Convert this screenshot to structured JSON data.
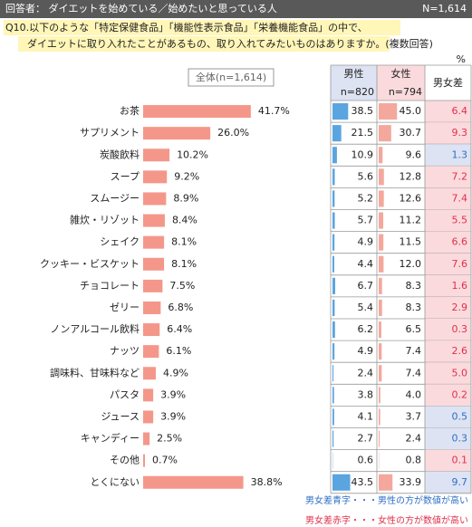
{
  "header": {
    "respondents": "回答者： ダイエットを始めている／始めたいと思っている人",
    "n": "N=1,614"
  },
  "question": [
    "Q10.以下のような「特定保健食品」「機能性表示食品」「栄養機能食品」の中で、",
    "ダイエットに取り入れたことがあるもの、取り入れてみたいものはありますか。(複数回答)"
  ],
  "chart_data": {
    "type": "bar",
    "unit": "%",
    "categories": [
      "お茶",
      "サプリメント",
      "炭酸飲料",
      "スープ",
      "スムージー",
      "雑炊・リゾット",
      "シェイク",
      "クッキー・ビスケット",
      "チョコレート",
      "ゼリー",
      "ノンアルコール飲料",
      "ナッツ",
      "調味料、甘味料など",
      "パスタ",
      "ジュース",
      "キャンディー",
      "その他",
      "とくにない"
    ],
    "series": [
      {
        "name": "全体(n=1,614)",
        "color": "#f4978a",
        "values": [
          41.7,
          26.0,
          10.2,
          9.2,
          8.9,
          8.4,
          8.1,
          8.1,
          7.5,
          6.8,
          6.4,
          6.1,
          4.9,
          3.9,
          3.9,
          2.5,
          0.7,
          38.8
        ],
        "value_labels": [
          "41.7%",
          "26.0%",
          "10.2%",
          "9.2%",
          "8.9%",
          "8.4%",
          "8.1%",
          "8.1%",
          "7.5%",
          "6.8%",
          "6.4%",
          "6.1%",
          "4.9%",
          "3.9%",
          "3.9%",
          "2.5%",
          "0.7%",
          "38.8%"
        ]
      },
      {
        "name": "男性",
        "sample": "n=820",
        "color": "#5aa5e0",
        "values": [
          38.5,
          21.5,
          10.9,
          5.6,
          5.2,
          5.7,
          4.9,
          4.4,
          6.7,
          5.4,
          6.2,
          4.9,
          2.4,
          3.8,
          4.1,
          2.7,
          0.6,
          43.5
        ],
        "value_labels": [
          "38.5",
          "21.5",
          "10.9",
          "5.6",
          "5.2",
          "5.7",
          "4.9",
          "4.4",
          "6.7",
          "5.4",
          "6.2",
          "4.9",
          "2.4",
          "3.8",
          "4.1",
          "2.7",
          "0.6",
          "43.5"
        ]
      },
      {
        "name": "女性",
        "sample": "n=794",
        "color": "#f4a89c",
        "values": [
          45.0,
          30.7,
          9.6,
          12.8,
          12.6,
          11.2,
          11.5,
          12.0,
          8.3,
          8.3,
          6.5,
          7.4,
          7.4,
          4.0,
          3.7,
          2.4,
          0.8,
          33.9
        ],
        "value_labels": [
          "45.0",
          "30.7",
          "9.6",
          "12.8",
          "12.6",
          "11.2",
          "11.5",
          "12.0",
          "8.3",
          "8.3",
          "6.5",
          "7.4",
          "7.4",
          "4.0",
          "3.7",
          "2.4",
          "0.8",
          "33.9"
        ]
      },
      {
        "name": "男女差",
        "values": [
          6.4,
          9.3,
          1.3,
          7.2,
          7.4,
          5.5,
          6.6,
          7.6,
          1.6,
          2.9,
          0.3,
          2.6,
          5.0,
          0.2,
          0.5,
          0.3,
          0.1,
          9.7
        ],
        "value_labels": [
          "6.4",
          "9.3",
          "1.3",
          "7.2",
          "7.4",
          "5.5",
          "6.6",
          "7.6",
          "1.6",
          "2.9",
          "0.3",
          "2.6",
          "5.0",
          "0.2",
          "0.5",
          "0.3",
          "0.1",
          "9.7"
        ]
      }
    ],
    "diff_colors": {
      "male_higher": "#2f6fc6",
      "female_higher": "#e0304a"
    },
    "notes": [
      "男女差青字・・・男性の方が数値が高い",
      "男女差赤字・・・女性の方が数値が高い"
    ]
  }
}
